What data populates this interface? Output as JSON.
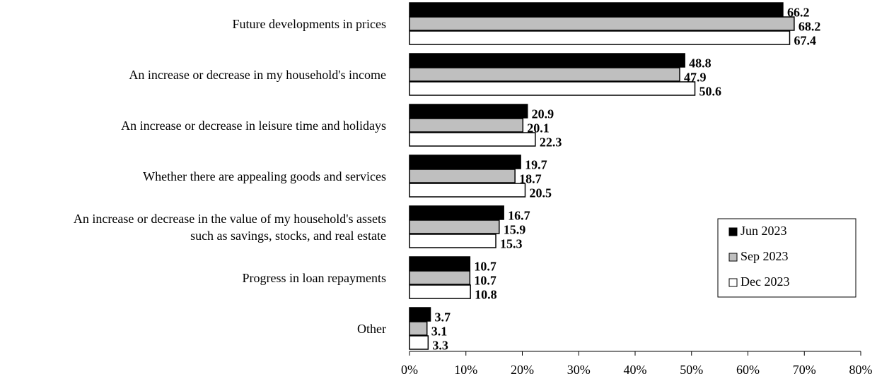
{
  "chart_data": {
    "type": "bar",
    "orientation": "horizontal",
    "categories": [
      "Future developments in prices",
      "An increase or decrease in my household's income",
      "An increase or decrease in leisure time and holidays",
      "Whether there are appealing goods and services",
      "An increase or decrease in the value of my household's assets\nsuch as savings, stocks, and real estate",
      "Progress in loan repayments",
      "Other"
    ],
    "series": [
      {
        "name": "Jun 2023",
        "color": "#000000",
        "values": [
          66.2,
          48.8,
          20.9,
          19.7,
          16.7,
          10.7,
          3.7
        ]
      },
      {
        "name": "Sep 2023",
        "color": "#bfbfbf",
        "values": [
          68.2,
          47.9,
          20.1,
          18.7,
          15.9,
          10.7,
          3.1
        ]
      },
      {
        "name": "Dec 2023",
        "color": "#ffffff",
        "values": [
          67.4,
          50.6,
          22.3,
          20.5,
          15.3,
          10.8,
          3.3
        ]
      }
    ],
    "xlim": [
      0,
      80
    ],
    "xticks": [
      {
        "value": 0,
        "label": "0%"
      },
      {
        "value": 10,
        "label": "10%"
      },
      {
        "value": 20,
        "label": "20%"
      },
      {
        "value": 30,
        "label": "30%"
      },
      {
        "value": 40,
        "label": "40%"
      },
      {
        "value": 50,
        "label": "50%"
      },
      {
        "value": 60,
        "label": "60%"
      },
      {
        "value": 70,
        "label": "70%"
      },
      {
        "value": 80,
        "label": "80%"
      }
    ],
    "legend": "right"
  }
}
